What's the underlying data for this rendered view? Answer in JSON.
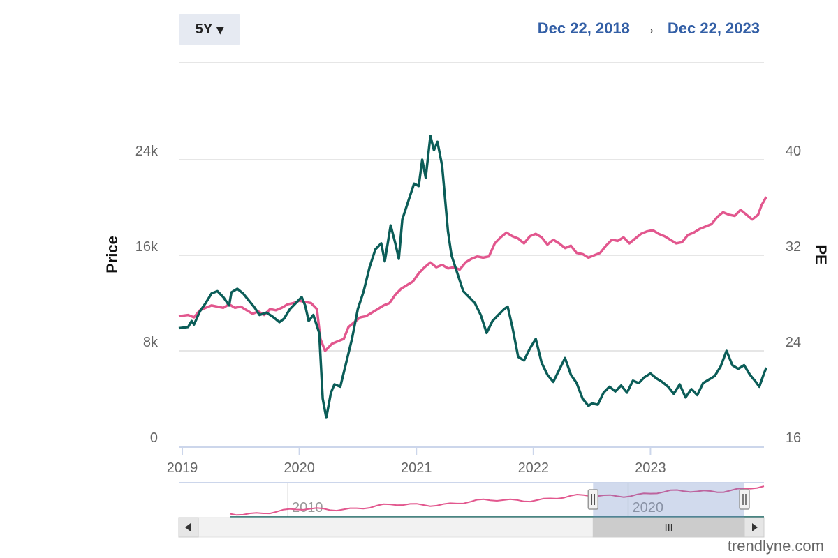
{
  "range_selector": {
    "label": "5Y",
    "caret": "▾"
  },
  "date_range": {
    "from": "Dec 22, 2018",
    "arrow": "→",
    "to": "Dec 22, 2023"
  },
  "watermark": "trendlyne.com",
  "colors": {
    "price": "#0b5d58",
    "pe": "#e2578e",
    "grid": "#dddddd",
    "axis_text": "#666666",
    "navigator_mask": "rgba(102,133,194,0.3)"
  },
  "chart_data": {
    "type": "line",
    "x_ticks": [
      "2019",
      "2020",
      "2021",
      "2022",
      "2023"
    ],
    "x_range": [
      2018.97,
      2023.97
    ],
    "y_left": {
      "label": "Price",
      "ticks": [
        "0",
        "8k",
        "16k",
        "24k"
      ],
      "range": [
        0,
        32000
      ]
    },
    "y_right": {
      "label": "PE",
      "ticks": [
        "16",
        "24",
        "32",
        "40"
      ],
      "range": [
        16,
        48
      ]
    },
    "series": [
      {
        "axis": "left",
        "points": [
          [
            2018.97,
            9900
          ],
          [
            2019.05,
            10000
          ],
          [
            2019.08,
            10500
          ],
          [
            2019.1,
            10200
          ],
          [
            2019.15,
            11300
          ],
          [
            2019.2,
            12000
          ],
          [
            2019.25,
            12800
          ],
          [
            2019.3,
            13000
          ],
          [
            2019.35,
            12500
          ],
          [
            2019.4,
            11800
          ],
          [
            2019.42,
            12900
          ],
          [
            2019.47,
            13200
          ],
          [
            2019.52,
            12800
          ],
          [
            2019.57,
            12200
          ],
          [
            2019.62,
            11600
          ],
          [
            2019.66,
            11000
          ],
          [
            2019.72,
            11200
          ],
          [
            2019.78,
            10800
          ],
          [
            2019.83,
            10400
          ],
          [
            2019.87,
            10700
          ],
          [
            2019.92,
            11500
          ],
          [
            2019.97,
            12000
          ],
          [
            2020.02,
            12500
          ],
          [
            2020.05,
            11800
          ],
          [
            2020.08,
            10500
          ],
          [
            2020.12,
            11000
          ],
          [
            2020.17,
            9500
          ],
          [
            2020.2,
            4000
          ],
          [
            2020.23,
            2400
          ],
          [
            2020.27,
            4500
          ],
          [
            2020.3,
            5200
          ],
          [
            2020.35,
            5000
          ],
          [
            2020.4,
            7000
          ],
          [
            2020.45,
            9000
          ],
          [
            2020.5,
            11500
          ],
          [
            2020.55,
            13000
          ],
          [
            2020.6,
            15000
          ],
          [
            2020.65,
            16500
          ],
          [
            2020.7,
            17000
          ],
          [
            2020.73,
            15500
          ],
          [
            2020.78,
            18500
          ],
          [
            2020.82,
            17000
          ],
          [
            2020.85,
            15700
          ],
          [
            2020.88,
            19000
          ],
          [
            2020.93,
            20500
          ],
          [
            2020.98,
            22000
          ],
          [
            2021.02,
            21800
          ],
          [
            2021.05,
            24000
          ],
          [
            2021.08,
            22500
          ],
          [
            2021.12,
            26000
          ],
          [
            2021.15,
            24800
          ],
          [
            2021.18,
            25500
          ],
          [
            2021.22,
            23500
          ],
          [
            2021.27,
            18000
          ],
          [
            2021.3,
            16000
          ],
          [
            2021.35,
            14500
          ],
          [
            2021.4,
            13000
          ],
          [
            2021.45,
            12500
          ],
          [
            2021.5,
            12000
          ],
          [
            2021.55,
            11000
          ],
          [
            2021.6,
            9500
          ],
          [
            2021.65,
            10500
          ],
          [
            2021.7,
            11000
          ],
          [
            2021.75,
            11500
          ],
          [
            2021.78,
            11700
          ],
          [
            2021.82,
            10000
          ],
          [
            2021.87,
            7500
          ],
          [
            2021.92,
            7200
          ],
          [
            2021.97,
            8200
          ],
          [
            2022.02,
            9000
          ],
          [
            2022.07,
            7000
          ],
          [
            2022.12,
            6000
          ],
          [
            2022.17,
            5400
          ],
          [
            2022.22,
            6400
          ],
          [
            2022.27,
            7400
          ],
          [
            2022.32,
            6000
          ],
          [
            2022.37,
            5300
          ],
          [
            2022.42,
            4000
          ],
          [
            2022.47,
            3400
          ],
          [
            2022.5,
            3600
          ],
          [
            2022.55,
            3500
          ],
          [
            2022.6,
            4500
          ],
          [
            2022.65,
            5000
          ],
          [
            2022.7,
            4600
          ],
          [
            2022.75,
            5100
          ],
          [
            2022.8,
            4500
          ],
          [
            2022.85,
            5500
          ],
          [
            2022.9,
            5300
          ],
          [
            2022.95,
            5800
          ],
          [
            2023.0,
            6100
          ],
          [
            2023.05,
            5700
          ],
          [
            2023.1,
            5400
          ],
          [
            2023.15,
            5000
          ],
          [
            2023.2,
            4400
          ],
          [
            2023.25,
            5200
          ],
          [
            2023.3,
            4100
          ],
          [
            2023.35,
            4800
          ],
          [
            2023.4,
            4300
          ],
          [
            2023.45,
            5300
          ],
          [
            2023.5,
            5600
          ],
          [
            2023.55,
            5900
          ],
          [
            2023.6,
            6700
          ],
          [
            2023.65,
            8000
          ],
          [
            2023.7,
            6800
          ],
          [
            2023.75,
            6500
          ],
          [
            2023.8,
            6800
          ],
          [
            2023.85,
            6000
          ],
          [
            2023.9,
            5400
          ],
          [
            2023.93,
            5000
          ],
          [
            2023.97,
            6100
          ],
          [
            2023.99,
            6600
          ]
        ]
      },
      {
        "axis": "right",
        "points": [
          [
            2018.97,
            26.9
          ],
          [
            2019.05,
            27.0
          ],
          [
            2019.1,
            26.8
          ],
          [
            2019.15,
            27.4
          ],
          [
            2019.2,
            27.6
          ],
          [
            2019.25,
            27.8
          ],
          [
            2019.3,
            27.7
          ],
          [
            2019.35,
            27.6
          ],
          [
            2019.4,
            27.9
          ],
          [
            2019.45,
            27.6
          ],
          [
            2019.5,
            27.7
          ],
          [
            2019.55,
            27.4
          ],
          [
            2019.6,
            27.1
          ],
          [
            2019.65,
            27.3
          ],
          [
            2019.7,
            27.0
          ],
          [
            2019.75,
            27.5
          ],
          [
            2019.8,
            27.4
          ],
          [
            2019.85,
            27.6
          ],
          [
            2019.9,
            27.9
          ],
          [
            2019.95,
            28.0
          ],
          [
            2020.0,
            28.2
          ],
          [
            2020.05,
            28.1
          ],
          [
            2020.1,
            28.0
          ],
          [
            2020.15,
            27.5
          ],
          [
            2020.18,
            25.0
          ],
          [
            2020.22,
            24.0
          ],
          [
            2020.28,
            24.6
          ],
          [
            2020.33,
            24.8
          ],
          [
            2020.38,
            25.0
          ],
          [
            2020.42,
            26.0
          ],
          [
            2020.47,
            26.4
          ],
          [
            2020.52,
            26.8
          ],
          [
            2020.57,
            26.9
          ],
          [
            2020.62,
            27.2
          ],
          [
            2020.67,
            27.5
          ],
          [
            2020.72,
            27.8
          ],
          [
            2020.77,
            28.0
          ],
          [
            2020.82,
            28.7
          ],
          [
            2020.87,
            29.2
          ],
          [
            2020.92,
            29.5
          ],
          [
            2020.97,
            29.8
          ],
          [
            2021.02,
            30.5
          ],
          [
            2021.07,
            31.0
          ],
          [
            2021.12,
            31.4
          ],
          [
            2021.17,
            31.0
          ],
          [
            2021.22,
            31.2
          ],
          [
            2021.27,
            30.9
          ],
          [
            2021.32,
            31.0
          ],
          [
            2021.37,
            30.8
          ],
          [
            2021.42,
            31.4
          ],
          [
            2021.47,
            31.7
          ],
          [
            2021.52,
            31.9
          ],
          [
            2021.57,
            31.8
          ],
          [
            2021.62,
            31.9
          ],
          [
            2021.67,
            33.0
          ],
          [
            2021.72,
            33.5
          ],
          [
            2021.77,
            33.9
          ],
          [
            2021.82,
            33.6
          ],
          [
            2021.87,
            33.4
          ],
          [
            2021.92,
            33.0
          ],
          [
            2021.97,
            33.6
          ],
          [
            2022.02,
            33.8
          ],
          [
            2022.07,
            33.5
          ],
          [
            2022.12,
            32.9
          ],
          [
            2022.17,
            33.3
          ],
          [
            2022.22,
            33.0
          ],
          [
            2022.27,
            32.6
          ],
          [
            2022.32,
            32.8
          ],
          [
            2022.37,
            32.2
          ],
          [
            2022.42,
            32.1
          ],
          [
            2022.47,
            31.8
          ],
          [
            2022.52,
            32.0
          ],
          [
            2022.57,
            32.2
          ],
          [
            2022.62,
            32.8
          ],
          [
            2022.67,
            33.3
          ],
          [
            2022.72,
            33.2
          ],
          [
            2022.77,
            33.5
          ],
          [
            2022.82,
            33.0
          ],
          [
            2022.87,
            33.4
          ],
          [
            2022.92,
            33.8
          ],
          [
            2022.97,
            34.0
          ],
          [
            2023.02,
            34.1
          ],
          [
            2023.07,
            33.8
          ],
          [
            2023.12,
            33.6
          ],
          [
            2023.17,
            33.3
          ],
          [
            2023.22,
            33.0
          ],
          [
            2023.27,
            33.1
          ],
          [
            2023.32,
            33.7
          ],
          [
            2023.37,
            33.9
          ],
          [
            2023.42,
            34.2
          ],
          [
            2023.47,
            34.4
          ],
          [
            2023.52,
            34.6
          ],
          [
            2023.57,
            35.2
          ],
          [
            2023.62,
            35.6
          ],
          [
            2023.67,
            35.4
          ],
          [
            2023.72,
            35.3
          ],
          [
            2023.77,
            35.8
          ],
          [
            2023.82,
            35.4
          ],
          [
            2023.87,
            35.0
          ],
          [
            2023.92,
            35.4
          ],
          [
            2023.95,
            36.2
          ],
          [
            2023.99,
            36.9
          ]
        ]
      }
    ],
    "navigator": {
      "ticks": [
        "2010",
        "2020"
      ],
      "x_range": [
        2006.8,
        2023.99
      ],
      "selected_range": [
        2018.97,
        2023.99
      ]
    }
  }
}
